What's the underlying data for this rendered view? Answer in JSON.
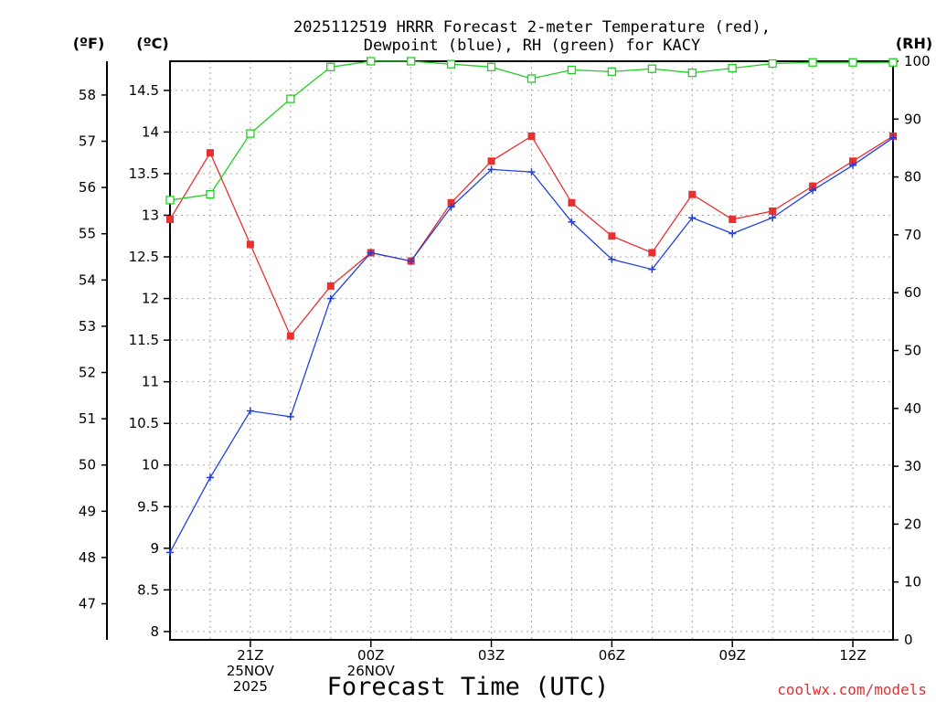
{
  "chart_data": {
    "type": "line",
    "title_lines": [
      "2025112519 HRRR Forecast 2-meter Temperature (red),",
      "Dewpoint (blue), RH (green) for KACY"
    ],
    "xlabel": "Forecast Time (UTC)",
    "units": {
      "fahrenheit": "(ºF)",
      "celsius": "(ºC)",
      "rh": "(RH)"
    },
    "x": [
      19,
      20,
      21,
      22,
      23,
      24,
      25,
      26,
      27,
      28,
      29,
      30,
      31,
      32,
      33,
      34,
      35,
      36,
      37
    ],
    "xlim": [
      19,
      37
    ],
    "x_ticks": [
      {
        "x": 21,
        "lines": [
          "21Z",
          "25NOV",
          "2025"
        ]
      },
      {
        "x": 24,
        "lines": [
          "00Z",
          "26NOV"
        ]
      },
      {
        "x": 27,
        "lines": [
          "03Z"
        ]
      },
      {
        "x": 30,
        "lines": [
          "06Z"
        ]
      },
      {
        "x": 33,
        "lines": [
          "09Z"
        ]
      },
      {
        "x": 36,
        "lines": [
          "12Z"
        ]
      }
    ],
    "celsius_axis": {
      "ylim": [
        7.9,
        14.85
      ],
      "ticks": [
        8,
        8.5,
        9,
        9.5,
        10,
        10.5,
        11,
        11.5,
        12,
        12.5,
        13,
        13.5,
        14,
        14.5
      ],
      "tick_labels": [
        "8",
        "8.5",
        "9",
        "9.5",
        "10",
        "10.5",
        "11",
        "11.5",
        "12",
        "12.5",
        "13",
        "13.5",
        "14",
        "14.5"
      ]
    },
    "fahrenheit_axis": {
      "ticks": [
        47,
        48,
        49,
        50,
        51,
        52,
        53,
        54,
        55,
        56,
        57,
        58
      ],
      "tick_labels": [
        "47",
        "48",
        "49",
        "50",
        "51",
        "52",
        "53",
        "54",
        "55",
        "56",
        "57",
        "58"
      ]
    },
    "rh_axis": {
      "ylim": [
        0,
        100
      ],
      "ticks": [
        0,
        10,
        20,
        30,
        40,
        50,
        60,
        70,
        80,
        90,
        100
      ],
      "tick_labels": [
        "0",
        "10",
        "20",
        "30",
        "40",
        "50",
        "60",
        "70",
        "80",
        "90",
        "100"
      ]
    },
    "series": [
      {
        "name": "Temperature",
        "axis": "celsius",
        "color": "#e83030",
        "marker": "filled-square",
        "values": [
          12.95,
          13.75,
          12.65,
          11.55,
          12.15,
          12.55,
          12.45,
          13.15,
          13.65,
          13.95,
          13.15,
          12.75,
          12.55,
          13.25,
          12.95,
          13.05,
          13.35,
          13.65,
          13.95
        ]
      },
      {
        "name": "Dewpoint",
        "axis": "celsius",
        "color": "#2040e0",
        "marker": "plus",
        "values": [
          8.95,
          9.85,
          10.65,
          10.58,
          12.0,
          12.55,
          12.45,
          13.1,
          13.55,
          13.52,
          12.92,
          12.47,
          12.35,
          12.97,
          12.78,
          12.97,
          13.3,
          13.6,
          13.93
        ]
      },
      {
        "name": "RH",
        "axis": "rh",
        "color": "#20d020",
        "marker": "open-square",
        "values": [
          76,
          77,
          87.5,
          93.5,
          99,
          100,
          100,
          99.5,
          99,
          97,
          98.5,
          98.2,
          98.7,
          98,
          98.8,
          99.6,
          99.8,
          99.8,
          99.8
        ]
      }
    ]
  },
  "footer": {
    "credit": "coolwx.com/models"
  }
}
